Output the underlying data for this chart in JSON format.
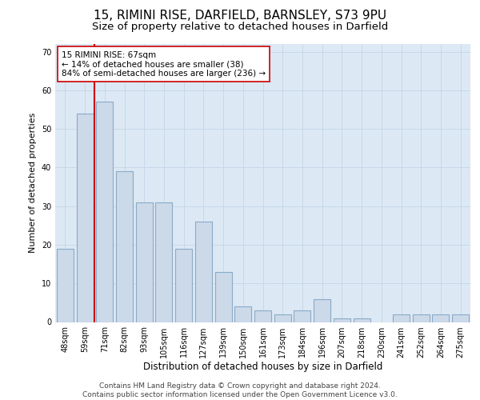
{
  "title1": "15, RIMINI RISE, DARFIELD, BARNSLEY, S73 9PU",
  "title2": "Size of property relative to detached houses in Darfield",
  "xlabel": "Distribution of detached houses by size in Darfield",
  "ylabel": "Number of detached properties",
  "categories": [
    "48sqm",
    "59sqm",
    "71sqm",
    "82sqm",
    "93sqm",
    "105sqm",
    "116sqm",
    "127sqm",
    "139sqm",
    "150sqm",
    "161sqm",
    "173sqm",
    "184sqm",
    "196sqm",
    "207sqm",
    "218sqm",
    "230sqm",
    "241sqm",
    "252sqm",
    "264sqm",
    "275sqm"
  ],
  "values": [
    19,
    54,
    57,
    39,
    31,
    31,
    19,
    26,
    13,
    4,
    3,
    2,
    3,
    6,
    1,
    1,
    0,
    2,
    2,
    2,
    2
  ],
  "bar_color": "#ccd9e8",
  "bar_edge_color": "#8aaac8",
  "bar_linewidth": 0.8,
  "vline_color": "#cc0000",
  "vline_linewidth": 1.5,
  "annotation_text": "15 RIMINI RISE: 67sqm\n← 14% of detached houses are smaller (38)\n84% of semi-detached houses are larger (236) →",
  "annotation_box_edgecolor": "#cc0000",
  "annotation_box_facecolor": "#ffffff",
  "ylim": [
    0,
    72
  ],
  "yticks": [
    0,
    10,
    20,
    30,
    40,
    50,
    60,
    70
  ],
  "grid_color": "#c8d8e8",
  "background_color": "#dce8f4",
  "footer_text": "Contains HM Land Registry data © Crown copyright and database right 2024.\nContains public sector information licensed under the Open Government Licence v3.0.",
  "title1_fontsize": 11,
  "title2_fontsize": 9.5,
  "xlabel_fontsize": 8.5,
  "ylabel_fontsize": 8,
  "tick_fontsize": 7,
  "annotation_fontsize": 7.5,
  "footer_fontsize": 6.5
}
